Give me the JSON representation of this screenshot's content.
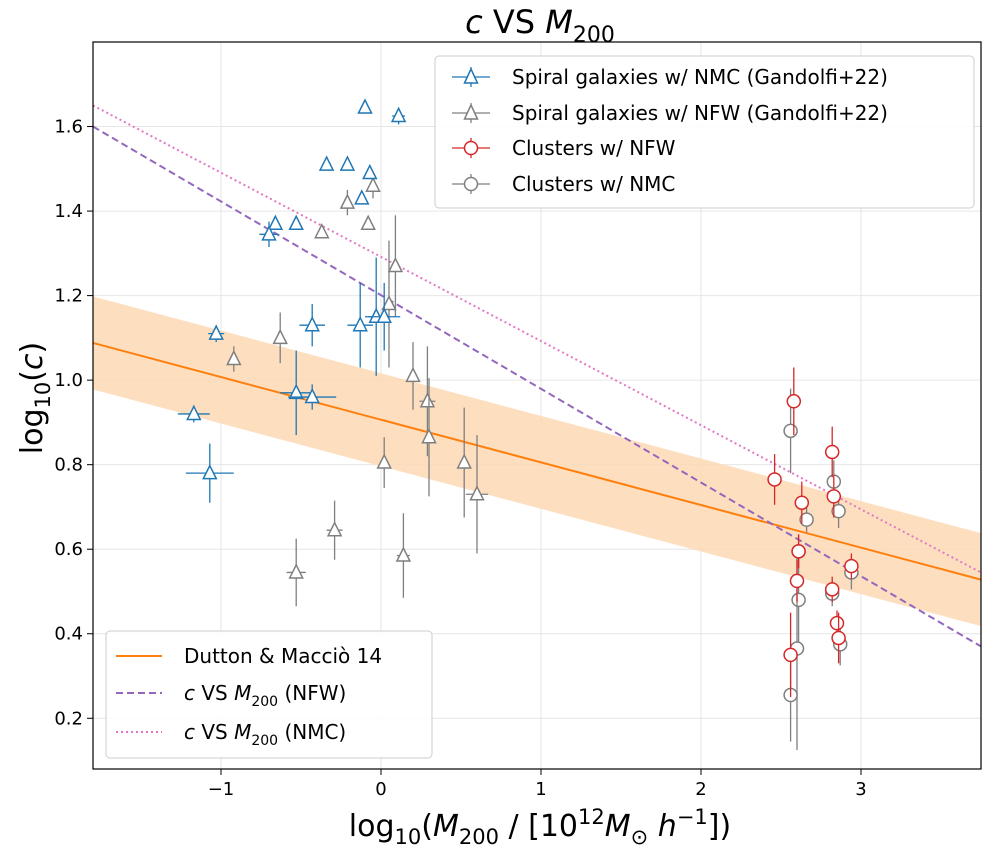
{
  "chart_data": {
    "type": "scatter",
    "title": "c VS M200",
    "xlabel": "log10(M200 / [10^12 M⊙ h^-1])",
    "ylabel": "log10(c)",
    "xlim": [
      -1.8,
      3.75
    ],
    "ylim": [
      0.08,
      1.8
    ],
    "x_ticks": [
      -1,
      0,
      1,
      2,
      3
    ],
    "x_tick_labels": [
      "−1",
      "0",
      "1",
      "2",
      "3"
    ],
    "y_ticks": [
      0.2,
      0.4,
      0.6,
      0.8,
      1.0,
      1.2,
      1.4,
      1.6
    ],
    "y_tick_labels": [
      "0.2",
      "0.4",
      "0.6",
      "0.8",
      "1.0",
      "1.2",
      "1.4",
      "1.6"
    ],
    "grid": true,
    "legends": {
      "top_right": [
        {
          "text": "Spiral galaxies w/ NMC (Gandolfi+22)",
          "series": "spiral_nmc"
        },
        {
          "text": "Spiral galaxies w/ NFW (Gandolfi+22)",
          "series": "spiral_nfw"
        },
        {
          "text": "Clusters w/ NFW",
          "series": "clusters_nfw"
        },
        {
          "text": "Clusters w/ NMC",
          "series": "clusters_nmc"
        }
      ],
      "bottom_left": [
        {
          "text": "Dutton & Macciò 14",
          "series": "dutton"
        },
        {
          "text": "c VS M200 (NFW)",
          "series": "fit_nfw"
        },
        {
          "text": "c VS M200 (NMC)",
          "series": "fit_nmc"
        }
      ]
    },
    "lines": [
      {
        "id": "dutton",
        "name": "Dutton & Macciò 14",
        "style": "solid",
        "color": "#ff7f0e",
        "x": [
          -1.8,
          3.75
        ],
        "y": [
          1.088,
          0.528
        ],
        "band": [
          0.11,
          0.11
        ],
        "band_color": "#fdd9b5"
      },
      {
        "id": "fit_nfw",
        "name": "c VS M200 (NFW)",
        "style": "dashed",
        "color": "#9467bd",
        "x": [
          -1.8,
          3.75
        ],
        "y": [
          1.6,
          0.37
        ]
      },
      {
        "id": "fit_nmc",
        "name": "c VS M200 (NMC)",
        "style": "dotted",
        "color": "#e377c2",
        "x": [
          -1.8,
          3.75
        ],
        "y": [
          1.65,
          0.545
        ]
      }
    ],
    "series": [
      {
        "id": "spiral_nmc",
        "name": "Spiral galaxies w/ NMC (Gandolfi+22)",
        "marker": "triangle",
        "color": "#1f77b4",
        "points": [
          {
            "x": -0.1,
            "y": 1.645,
            "xerr": 0,
            "yerr": 0
          },
          {
            "x": 0.11,
            "y": 1.625,
            "xerr": 0.04,
            "yerr": 0.02
          },
          {
            "x": -0.34,
            "y": 1.51,
            "xerr": 0,
            "yerr": 0
          },
          {
            "x": -0.21,
            "y": 1.51,
            "xerr": 0,
            "yerr": 0
          },
          {
            "x": -0.07,
            "y": 1.49,
            "xerr": 0,
            "yerr": 0
          },
          {
            "x": -0.12,
            "y": 1.43,
            "xerr": 0,
            "yerr": 0
          },
          {
            "x": -0.66,
            "y": 1.37,
            "xerr": 0,
            "yerr": 0
          },
          {
            "x": -0.53,
            "y": 1.37,
            "xerr": 0,
            "yerr": 0
          },
          {
            "x": -0.7,
            "y": 1.345,
            "xerr": 0.06,
            "yerr": 0.03
          },
          {
            "x": -1.03,
            "y": 1.11,
            "xerr": 0.05,
            "yerr": 0.02
          },
          {
            "x": -0.43,
            "y": 1.13,
            "xerr": 0.08,
            "yerr": 0.05
          },
          {
            "x": -0.13,
            "y": 1.13,
            "xerr": 0.08,
            "yerr": 0.1
          },
          {
            "x": -0.03,
            "y": 1.15,
            "xerr": 0.07,
            "yerr": 0.14
          },
          {
            "x": 0.02,
            "y": 1.15,
            "xerr": 0.1,
            "yerr": 0.08
          },
          {
            "x": -0.53,
            "y": 0.97,
            "xerr": 0.1,
            "yerr": 0.1
          },
          {
            "x": -0.43,
            "y": 0.96,
            "xerr": 0.15,
            "yerr": 0.03
          },
          {
            "x": -1.17,
            "y": 0.92,
            "xerr": 0.1,
            "yerr": 0.02
          },
          {
            "x": -1.07,
            "y": 0.78,
            "xerr": 0.15,
            "yerr": 0.07
          }
        ]
      },
      {
        "id": "spiral_nfw",
        "name": "Spiral galaxies w/ NFW (Gandolfi+22)",
        "marker": "triangle",
        "color": "#7f7f7f",
        "points": [
          {
            "x": -0.05,
            "y": 1.46,
            "xerr": 0,
            "yerr": 0.03
          },
          {
            "x": -0.21,
            "y": 1.42,
            "xerr": 0,
            "yerr": 0.03
          },
          {
            "x": -0.08,
            "y": 1.37,
            "xerr": 0,
            "yerr": 0
          },
          {
            "x": -0.37,
            "y": 1.35,
            "xerr": 0,
            "yerr": 0
          },
          {
            "x": 0.09,
            "y": 1.27,
            "xerr": 0,
            "yerr": 0.12
          },
          {
            "x": 0.05,
            "y": 1.18,
            "xerr": 0,
            "yerr": 0.15
          },
          {
            "x": -0.63,
            "y": 1.1,
            "xerr": 0,
            "yerr": 0.06
          },
          {
            "x": -0.92,
            "y": 1.05,
            "xerr": 0,
            "yerr": 0.03
          },
          {
            "x": 0.2,
            "y": 1.01,
            "xerr": 0,
            "yerr": 0.08
          },
          {
            "x": 0.29,
            "y": 0.95,
            "xerr": 0.05,
            "yerr": 0.13
          },
          {
            "x": 0.3,
            "y": 0.865,
            "xerr": 0,
            "yerr": 0.14
          },
          {
            "x": 0.02,
            "y": 0.805,
            "xerr": 0,
            "yerr": 0.06
          },
          {
            "x": 0.52,
            "y": 0.805,
            "xerr": 0,
            "yerr": 0.13
          },
          {
            "x": 0.6,
            "y": 0.73,
            "xerr": 0.07,
            "yerr": 0.14
          },
          {
            "x": -0.29,
            "y": 0.645,
            "xerr": 0.05,
            "yerr": 0.07
          },
          {
            "x": 0.14,
            "y": 0.585,
            "xerr": 0.04,
            "yerr": 0.1
          },
          {
            "x": -0.53,
            "y": 0.545,
            "xerr": 0.06,
            "yerr": 0.08
          }
        ]
      },
      {
        "id": "clusters_nfw",
        "name": "Clusters w/ NFW",
        "marker": "circle",
        "color": "#d62728",
        "points": [
          {
            "x": 2.58,
            "y": 0.95,
            "xerr": 0,
            "yerr": 0.08
          },
          {
            "x": 2.82,
            "y": 0.83,
            "xerr": 0,
            "yerr": 0.06
          },
          {
            "x": 2.46,
            "y": 0.765,
            "xerr": 0,
            "yerr": 0.06
          },
          {
            "x": 2.83,
            "y": 0.725,
            "xerr": 0,
            "yerr": 0.05
          },
          {
            "x": 2.63,
            "y": 0.71,
            "xerr": 0,
            "yerr": 0.05
          },
          {
            "x": 2.61,
            "y": 0.595,
            "xerr": 0,
            "yerr": 0.04
          },
          {
            "x": 2.94,
            "y": 0.56,
            "xerr": 0,
            "yerr": 0.03
          },
          {
            "x": 2.6,
            "y": 0.525,
            "xerr": 0,
            "yerr": 0.05
          },
          {
            "x": 2.82,
            "y": 0.505,
            "xerr": 0,
            "yerr": 0.03
          },
          {
            "x": 2.85,
            "y": 0.425,
            "xerr": 0,
            "yerr": 0.03
          },
          {
            "x": 2.86,
            "y": 0.39,
            "xerr": 0,
            "yerr": 0.06
          },
          {
            "x": 2.56,
            "y": 0.35,
            "xerr": 0,
            "yerr": 0.1
          }
        ]
      },
      {
        "id": "clusters_nmc",
        "name": "Clusters w/ NMC",
        "marker": "circle",
        "color": "#7f7f7f",
        "points": [
          {
            "x": 2.56,
            "y": 0.88,
            "xerr": 0,
            "yerr": 0.1
          },
          {
            "x": 2.83,
            "y": 0.76,
            "xerr": 0,
            "yerr": 0.05
          },
          {
            "x": 2.86,
            "y": 0.69,
            "xerr": 0,
            "yerr": 0.04
          },
          {
            "x": 2.66,
            "y": 0.67,
            "xerr": 0,
            "yerr": 0.03
          },
          {
            "x": 2.61,
            "y": 0.595,
            "xerr": 0,
            "yerr": 0.04
          },
          {
            "x": 2.94,
            "y": 0.545,
            "xerr": 0,
            "yerr": 0.04
          },
          {
            "x": 2.82,
            "y": 0.495,
            "xerr": 0,
            "yerr": 0.03
          },
          {
            "x": 2.61,
            "y": 0.48,
            "xerr": 0,
            "yerr": 0.12
          },
          {
            "x": 2.87,
            "y": 0.375,
            "xerr": 0,
            "yerr": 0.05
          },
          {
            "x": 2.6,
            "y": 0.365,
            "xerr": 0,
            "yerr": 0.24
          },
          {
            "x": 2.56,
            "y": 0.255,
            "xerr": 0,
            "yerr": 0.11
          }
        ]
      }
    ]
  }
}
